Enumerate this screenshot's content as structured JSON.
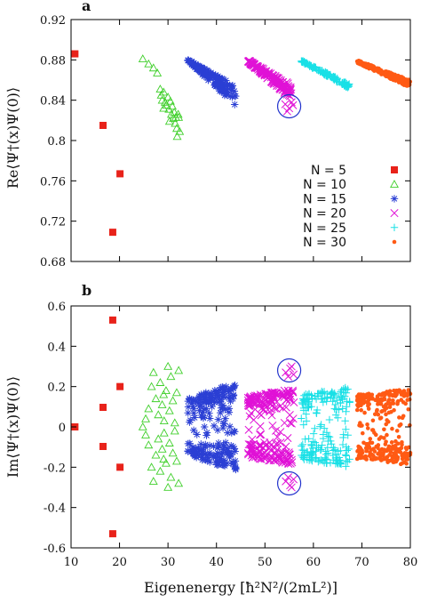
{
  "chart_data": [
    {
      "type": "scatter",
      "panel_label": "a",
      "xlabel": "",
      "ylabel": "Re⟨Ψ†(x)Ψ(0)⟩",
      "xlim": [
        10,
        80
      ],
      "ylim": [
        0.68,
        0.92
      ],
      "xticks": [],
      "yticks": [
        0.68,
        0.72,
        0.76,
        0.8,
        0.84,
        0.88,
        0.92
      ],
      "ytick_labels": [
        "0.68",
        "0.72",
        "0.76",
        "0.8",
        "0.84",
        "0.88",
        "0.92"
      ],
      "legend_position": "bottom-right",
      "circles": [
        {
          "x": 55,
          "y": 0.834
        }
      ],
      "series": [
        {
          "name": "N = 5",
          "marker": "square",
          "color": "#e8221a",
          "points": [
            [
              10.8,
              0.886
            ],
            [
              16.6,
              0.815
            ],
            [
              18.6,
              0.709
            ],
            [
              20.1,
              0.767
            ]
          ]
        },
        {
          "name": "N = 10",
          "marker": "triangle",
          "color": "#3fcf2a",
          "points": [
            [
              24.8,
              0.881
            ],
            [
              26.0,
              0.876
            ],
            [
              27.0,
              0.872
            ],
            [
              27.8,
              0.867
            ],
            [
              28.4,
              0.851
            ],
            [
              28.6,
              0.845
            ],
            [
              29.1,
              0.848
            ],
            [
              29.4,
              0.838
            ],
            [
              29.7,
              0.835
            ],
            [
              30.0,
              0.843
            ],
            [
              30.2,
              0.831
            ],
            [
              30.5,
              0.839
            ],
            [
              30.7,
              0.826
            ],
            [
              30.9,
              0.834
            ],
            [
              31.1,
              0.822
            ],
            [
              31.3,
              0.828
            ],
            [
              31.5,
              0.817
            ],
            [
              31.6,
              0.823
            ],
            [
              31.8,
              0.812
            ],
            [
              31.9,
              0.804
            ],
            [
              32.1,
              0.826
            ],
            [
              32.2,
              0.823
            ],
            [
              32.4,
              0.809
            ],
            [
              29.1,
              0.832
            ],
            [
              28.8,
              0.84
            ],
            [
              30.3,
              0.819
            ]
          ]
        }
      ],
      "bands": [
        {
          "name": "N = 15",
          "marker": "star",
          "color": "#2b3fd4",
          "x_range": [
            34,
            44
          ],
          "y_top": [
            0.881,
            0.854
          ],
          "y_bottom": [
            0.879,
            0.834
          ],
          "count": 140
        },
        {
          "name": "N = 20",
          "marker": "x",
          "color": "#e012d6",
          "x_range": [
            46.5,
            55.5
          ],
          "y_top": [
            0.88,
            0.855
          ],
          "y_bottom": [
            0.878,
            0.841
          ],
          "count": 150
        },
        {
          "name": "N = 25",
          "marker": "plus",
          "color": "#19e0e6",
          "x_range": [
            57.5,
            67.5
          ],
          "y_top": [
            0.88,
            0.856
          ],
          "y_bottom": [
            0.878,
            0.851
          ],
          "count": 130
        },
        {
          "name": "N = 30",
          "marker": "dot",
          "color": "#ff5a14",
          "x_range": [
            69,
            80
          ],
          "y_top": [
            0.88,
            0.86
          ],
          "y_bottom": [
            0.877,
            0.852
          ],
          "count": 240
        }
      ],
      "extra_points": [
        {
          "marker": "x",
          "color": "#e012d6",
          "points": [
            [
              54.2,
              0.836
            ],
            [
              55.0,
              0.832
            ],
            [
              55.8,
              0.835
            ],
            [
              54.6,
              0.829
            ],
            [
              55.5,
              0.838
            ]
          ]
        }
      ]
    },
    {
      "type": "scatter",
      "panel_label": "b",
      "xlabel": "Eigenenergy [ħ²N²/(2mL²)]",
      "ylabel": "Im⟨Ψ†(x)Ψ(0)⟩",
      "xlim": [
        10,
        80
      ],
      "ylim": [
        -0.6,
        0.6
      ],
      "xticks": [
        10,
        20,
        30,
        40,
        50,
        60,
        70,
        80
      ],
      "xtick_labels": [
        "10",
        "20",
        "30",
        "40",
        "50",
        "60",
        "70",
        "80"
      ],
      "yticks": [
        -0.6,
        -0.4,
        -0.2,
        0,
        0.2,
        0.4,
        0.6
      ],
      "ytick_labels": [
        "-0.6",
        "-0.4",
        "-0.2",
        "0",
        "0.2",
        "0.4",
        "0.6"
      ],
      "circles": [
        {
          "x": 55,
          "y": 0.28
        },
        {
          "x": 55,
          "y": -0.28
        }
      ],
      "series": [
        {
          "name": "N = 5",
          "marker": "square",
          "color": "#e8221a",
          "points": [
            [
              10.8,
              0.0
            ],
            [
              16.6,
              0.097
            ],
            [
              16.6,
              -0.097
            ],
            [
              18.6,
              0.53
            ],
            [
              18.6,
              -0.53
            ],
            [
              20.1,
              0.2
            ],
            [
              20.1,
              -0.2
            ]
          ]
        },
        {
          "name": "N = 10",
          "marker": "triangle",
          "color": "#3fcf2a",
          "points": [
            [
              24.8,
              0.0
            ],
            [
              25.4,
              0.04
            ],
            [
              25.4,
              -0.04
            ],
            [
              26.0,
              0.09
            ],
            [
              26.0,
              -0.09
            ],
            [
              26.6,
              0.2
            ],
            [
              26.6,
              -0.2
            ],
            [
              27.0,
              0.27
            ],
            [
              27.0,
              -0.27
            ],
            [
              27.5,
              0.14
            ],
            [
              27.5,
              -0.14
            ],
            [
              28.0,
              0.06
            ],
            [
              28.0,
              -0.06
            ],
            [
              28.4,
              0.22
            ],
            [
              28.4,
              -0.22
            ],
            [
              28.8,
              0.11
            ],
            [
              28.8,
              -0.11
            ],
            [
              29.2,
              0.03
            ],
            [
              29.2,
              -0.03
            ],
            [
              29.6,
              0.18
            ],
            [
              29.6,
              -0.18
            ],
            [
              30.0,
              0.3
            ],
            [
              30.0,
              -0.3
            ],
            [
              30.3,
              0.08
            ],
            [
              30.3,
              -0.08
            ],
            [
              30.6,
              0.25
            ],
            [
              30.6,
              -0.25
            ],
            [
              31.0,
              0.13
            ],
            [
              31.0,
              -0.13
            ],
            [
              31.4,
              0.02
            ],
            [
              31.4,
              -0.02
            ],
            [
              31.8,
              0.17
            ],
            [
              31.8,
              -0.17
            ],
            [
              32.2,
              0.28
            ],
            [
              32.2,
              -0.28
            ],
            [
              29.1,
              0.16
            ],
            [
              29.1,
              -0.16
            ]
          ]
        }
      ],
      "bands": [
        {
          "name": "N = 15",
          "marker": "star",
          "color": "#2b3fd4",
          "x_range": [
            34,
            44
          ],
          "y_max": [
            0.14,
            0.22
          ],
          "count": 210
        },
        {
          "name": "N = 20",
          "marker": "x",
          "color": "#e012d6",
          "x_range": [
            46.5,
            56
          ],
          "y_max": [
            0.15,
            0.19
          ],
          "count": 220
        },
        {
          "name": "N = 25",
          "marker": "plus",
          "color": "#19e0e6",
          "x_range": [
            57.5,
            67.5
          ],
          "y_max": [
            0.16,
            0.2
          ],
          "count": 200
        },
        {
          "name": "N = 30",
          "marker": "dot",
          "color": "#ff5a14",
          "x_range": [
            69,
            80
          ],
          "y_max": [
            0.16,
            0.19
          ],
          "count": 320
        }
      ],
      "extra_points": [
        {
          "marker": "x",
          "color": "#e012d6",
          "points": [
            [
              54.3,
              0.27
            ],
            [
              55.2,
              0.29
            ],
            [
              55.9,
              0.26
            ],
            [
              54.8,
              0.25
            ],
            [
              55.5,
              0.3
            ],
            [
              54.3,
              -0.27
            ],
            [
              55.2,
              -0.29
            ],
            [
              55.9,
              -0.26
            ],
            [
              54.8,
              -0.25
            ],
            [
              55.5,
              -0.3
            ]
          ]
        }
      ]
    }
  ]
}
